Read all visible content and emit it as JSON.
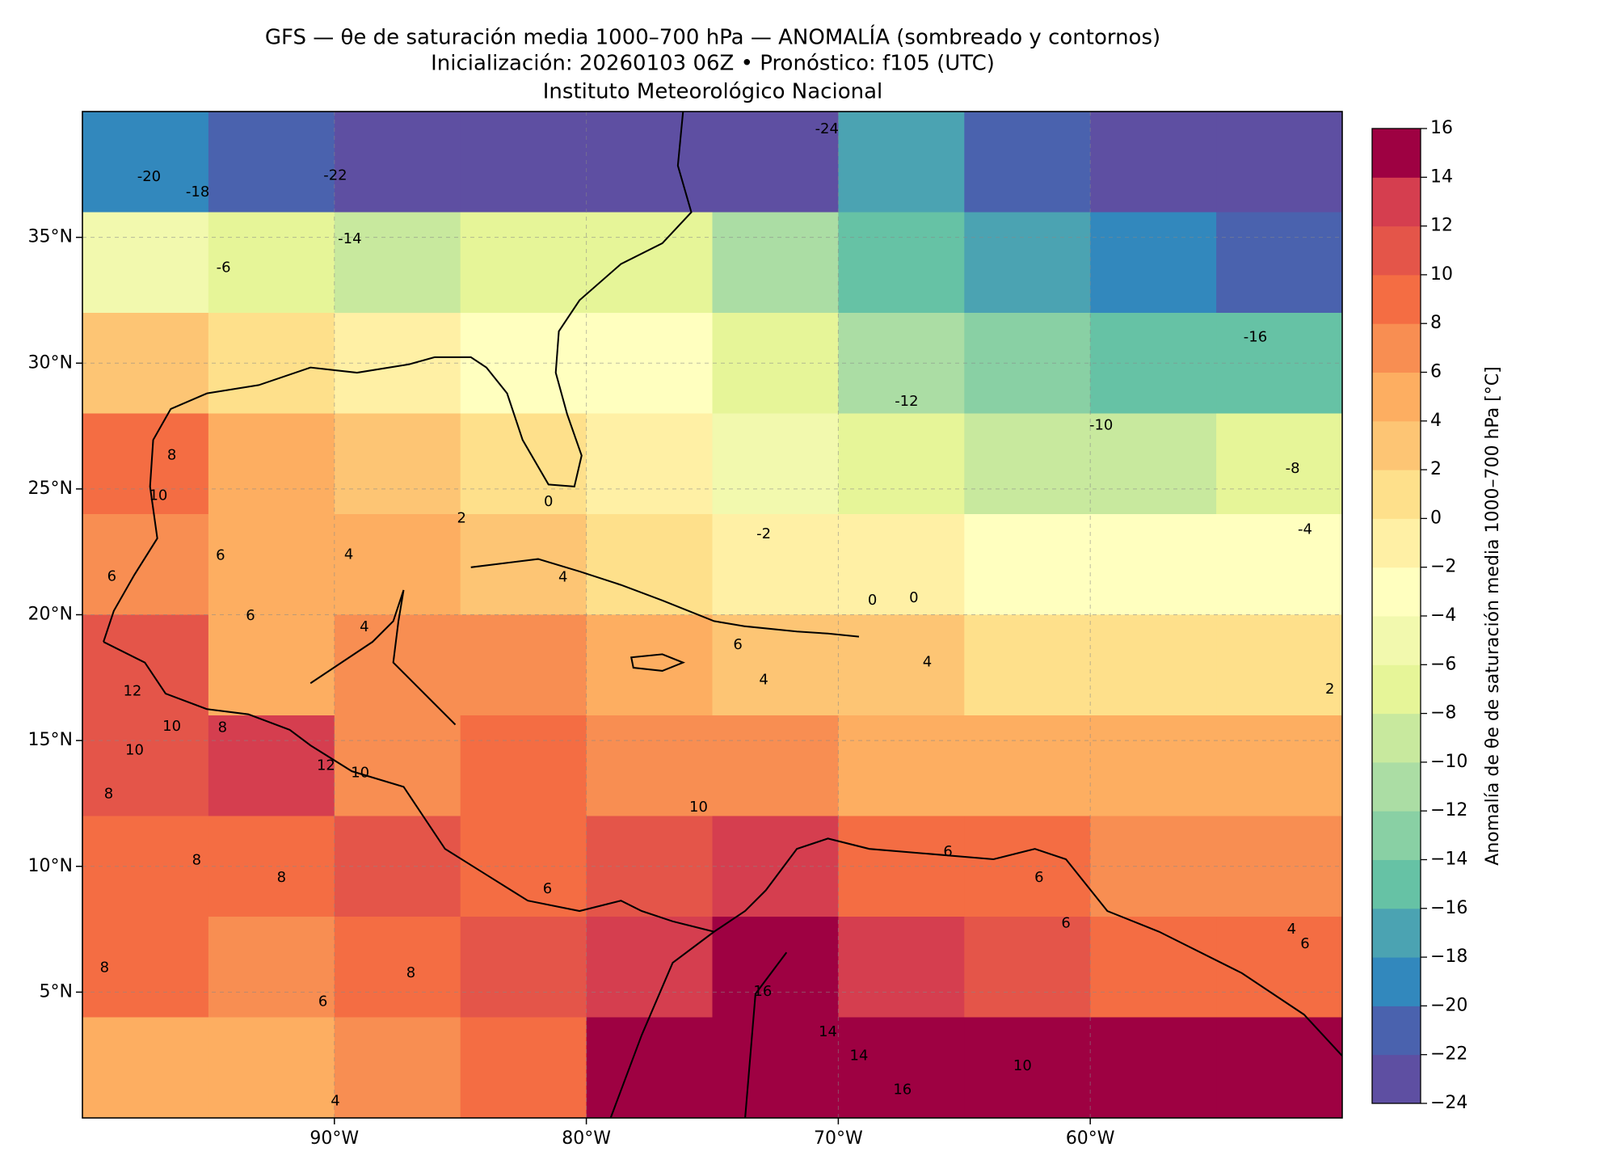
{
  "chart_data": {
    "type": "gridmap",
    "title": "GFS — θe de saturación media 1000–700 hPa — ANOMALÍA (sombreado y contornos)",
    "subtitle": "Inicialización: 20260103 06Z   •   Pronóstico: f105 (UTC)",
    "institution": "Instituto Meteorológico Nacional",
    "xlim": [
      -100,
      -50
    ],
    "ylim": [
      0,
      40
    ],
    "xticks": [
      {
        "value": -90,
        "label": "90°W"
      },
      {
        "value": -80,
        "label": "80°W"
      },
      {
        "value": -70,
        "label": "70°W"
      },
      {
        "value": -60,
        "label": "60°W"
      }
    ],
    "yticks": [
      {
        "value": 35,
        "label": "35°N"
      },
      {
        "value": 30,
        "label": "30°N"
      },
      {
        "value": 25,
        "label": "25°N"
      },
      {
        "value": 20,
        "label": "20°N"
      },
      {
        "value": 15,
        "label": "15°N"
      },
      {
        "value": 10,
        "label": "10°N"
      },
      {
        "value": 5,
        "label": "5°N"
      }
    ],
    "grid": true,
    "field": [
      [
        -20,
        -22,
        -24,
        -24,
        -24,
        -24,
        -18,
        -22,
        -24,
        -24
      ],
      [
        -6,
        -8,
        -10,
        -8,
        -8,
        -12,
        -16,
        -18,
        -20,
        -22
      ],
      [
        2,
        0,
        -2,
        -4,
        -4,
        -8,
        -12,
        -14,
        -16,
        -16
      ],
      [
        8,
        4,
        2,
        0,
        -2,
        -6,
        -8,
        -10,
        -10,
        -8
      ],
      [
        6,
        4,
        4,
        2,
        0,
        -2,
        -2,
        -4,
        -4,
        -4
      ],
      [
        10,
        4,
        6,
        6,
        4,
        2,
        2,
        0,
        0,
        0
      ],
      [
        10,
        12,
        6,
        8,
        6,
        6,
        4,
        4,
        4,
        4
      ],
      [
        8,
        8,
        10,
        8,
        10,
        12,
        8,
        8,
        6,
        6
      ],
      [
        8,
        6,
        8,
        10,
        12,
        14,
        12,
        10,
        8,
        8
      ],
      [
        4,
        4,
        6,
        8,
        16,
        14,
        14,
        14,
        16,
        14
      ]
    ],
    "contour_labels": [
      -24,
      -20,
      -18,
      -22,
      -14,
      -6,
      -16,
      -12,
      -10,
      -8,
      -4,
      -2,
      0,
      2,
      4,
      6,
      8,
      10,
      6,
      4,
      6,
      4,
      12,
      10,
      8,
      10,
      8,
      8,
      10,
      8,
      6,
      4,
      6,
      4,
      4,
      2,
      0,
      0,
      16,
      14,
      14,
      16,
      10,
      6,
      6,
      4,
      6,
      6,
      8,
      8,
      6,
      10,
      12
    ],
    "colorbar": {
      "label": "Anomalía de θe de saturación media 1000–700 hPa [°C]",
      "ticks": [
        {
          "value": -24,
          "label": "−24"
        },
        {
          "value": -22,
          "label": "−22"
        },
        {
          "value": -20,
          "label": "−20"
        },
        {
          "value": -18,
          "label": "−18"
        },
        {
          "value": -16,
          "label": "−16"
        },
        {
          "value": -14,
          "label": "−14"
        },
        {
          "value": -12,
          "label": "−12"
        },
        {
          "value": -10,
          "label": "−10"
        },
        {
          "value": -8,
          "label": "−8"
        },
        {
          "value": -6,
          "label": "−6"
        },
        {
          "value": -4,
          "label": "−4"
        },
        {
          "value": -2,
          "label": "−2"
        },
        0,
        2,
        4,
        6,
        8,
        10,
        12,
        14,
        16
      ],
      "colors": [
        "#5e4fa2",
        "#4a62ae",
        "#3288bd",
        "#4ba3b2",
        "#66c2a5",
        "#89d0a4",
        "#abdda4",
        "#c8e99e",
        "#e6f598",
        "#f2f9ae",
        "#ffffbf",
        "#fff0a5",
        "#fee08b",
        "#fdc574",
        "#fdae61",
        "#f88e52",
        "#f46d43",
        "#e45549",
        "#d53e4f",
        "#9e0142"
      ]
    }
  }
}
